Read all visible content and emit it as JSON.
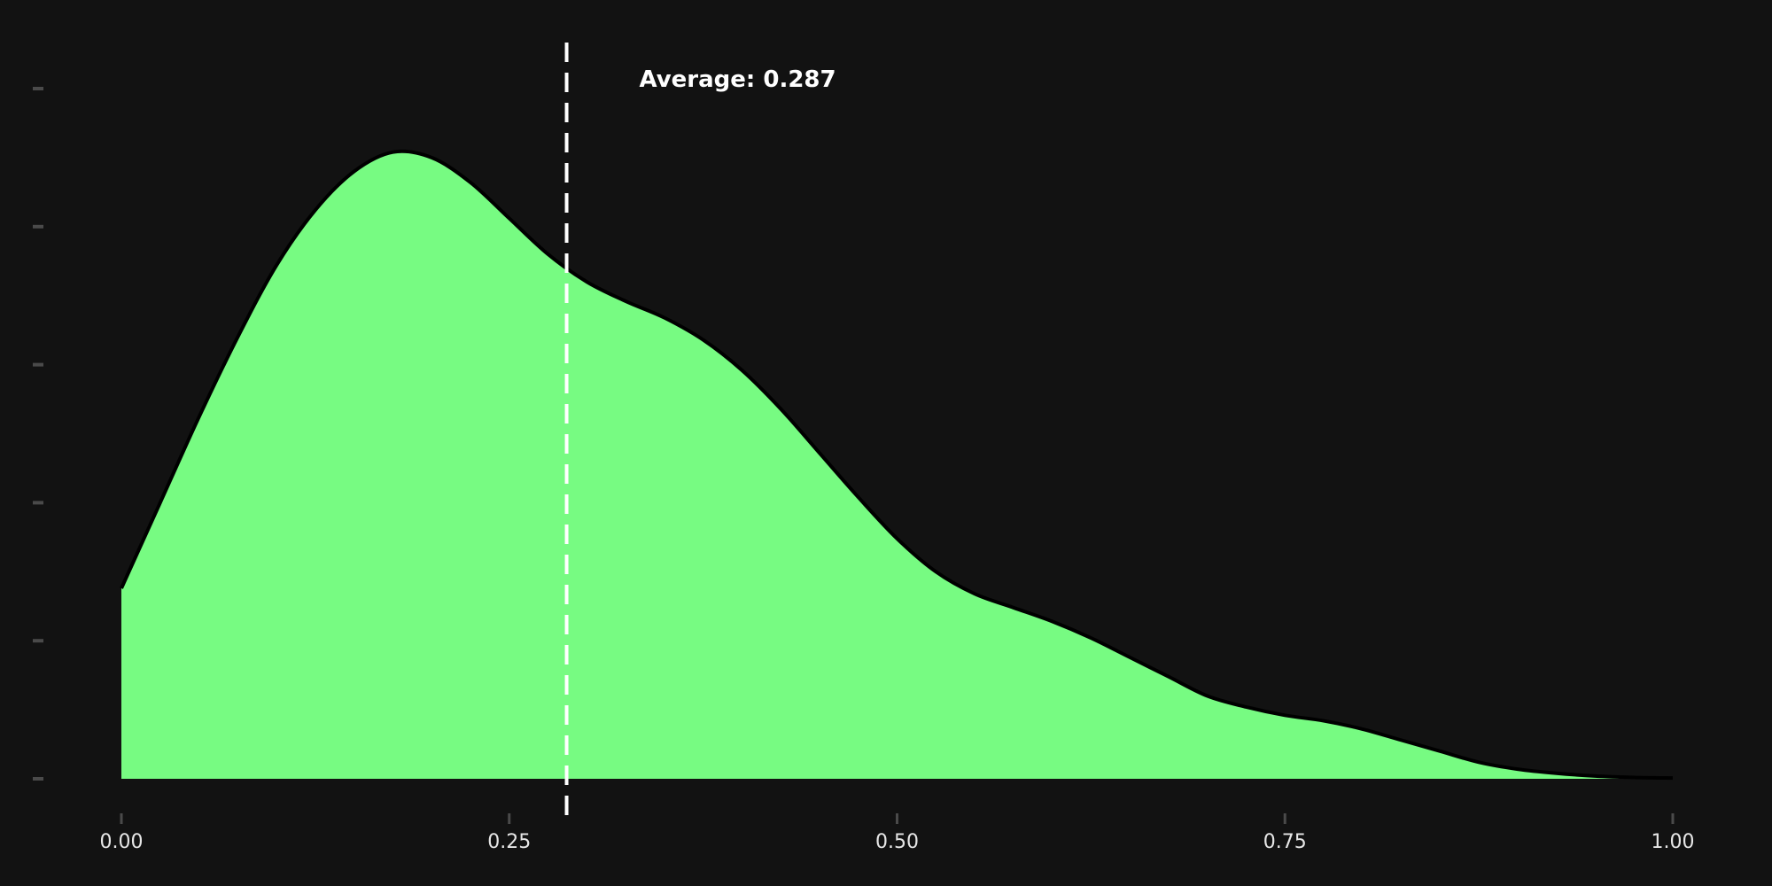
{
  "chart_data": {
    "type": "area",
    "title": "",
    "xlabel": "",
    "ylabel": "",
    "xlim": [
      0,
      1
    ],
    "ylim": [
      0,
      2.5
    ],
    "x_ticks": [
      0,
      0.25,
      0.5,
      0.75,
      1
    ],
    "x_tick_labels": [
      "0.00",
      "0.25",
      "0.50",
      "0.75",
      "1.00"
    ],
    "y_ticks": [
      0,
      0.5,
      1,
      1.5,
      2,
      2.5
    ],
    "y_tick_labels_visible": false,
    "grid": false,
    "legend": "none",
    "series": [
      {
        "x": [
          0,
          0.025,
          0.05,
          0.075,
          0.1,
          0.125,
          0.15,
          0.175,
          0.2,
          0.225,
          0.25,
          0.275,
          0.3,
          0.325,
          0.35,
          0.375,
          0.4,
          0.425,
          0.45,
          0.475,
          0.5,
          0.525,
          0.55,
          0.575,
          0.6,
          0.625,
          0.65,
          0.675,
          0.7,
          0.725,
          0.75,
          0.775,
          0.8,
          0.825,
          0.85,
          0.875,
          0.9,
          0.925,
          0.95,
          0.975,
          1
        ],
        "y": [
          0.69,
          1.0,
          1.31,
          1.6,
          1.86,
          2.06,
          2.2,
          2.27,
          2.25,
          2.16,
          2.03,
          1.9,
          1.8,
          1.73,
          1.67,
          1.59,
          1.48,
          1.34,
          1.18,
          1.02,
          0.87,
          0.75,
          0.67,
          0.62,
          0.57,
          0.51,
          0.44,
          0.37,
          0.3,
          0.26,
          0.23,
          0.21,
          0.18,
          0.14,
          0.1,
          0.06,
          0.035,
          0.02,
          0.01,
          0.005,
          0.003
        ]
      }
    ],
    "colors": {
      "fill": "#77fb82",
      "line": "#000000",
      "background": "#121212",
      "tick": "#4a4a4a",
      "reference_line": "#ffffff"
    },
    "reference_line": {
      "x": 0.287,
      "style": "dashed",
      "label": "Average: 0.287"
    }
  }
}
